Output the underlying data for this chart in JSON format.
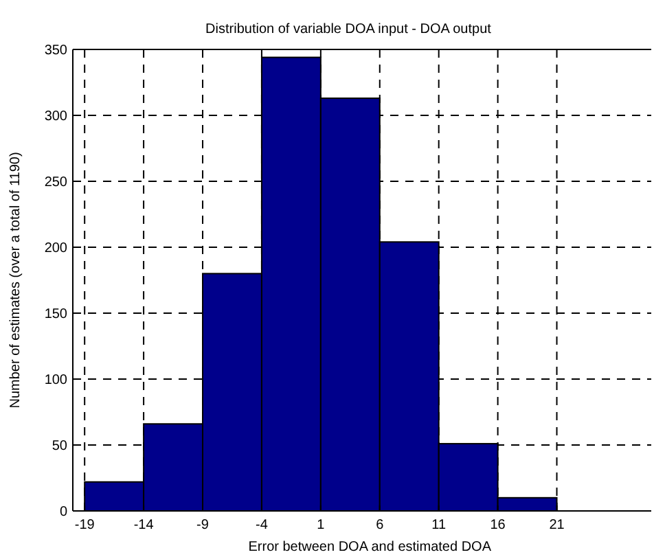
{
  "chart_data": {
    "type": "histogram",
    "title": "Distribution of variable DOA input - DOA output",
    "xlabel": "Error between DOA and estimated DOA",
    "ylabel": "Number of estimates (over a total of 1190)",
    "bins": [
      -19,
      -14,
      -9,
      -4,
      1,
      6,
      11,
      16,
      21
    ],
    "values": [
      22,
      66,
      180,
      344,
      313,
      204,
      51,
      10
    ],
    "color": "#00008b",
    "xlim": [
      -20,
      29
    ],
    "xticks": [
      -19,
      -14,
      -9,
      -4,
      1,
      6,
      11,
      16,
      21
    ],
    "ylim": [
      0,
      350
    ],
    "yticks": [
      0,
      50,
      100,
      150,
      200,
      250,
      300,
      350
    ],
    "grid": true
  }
}
